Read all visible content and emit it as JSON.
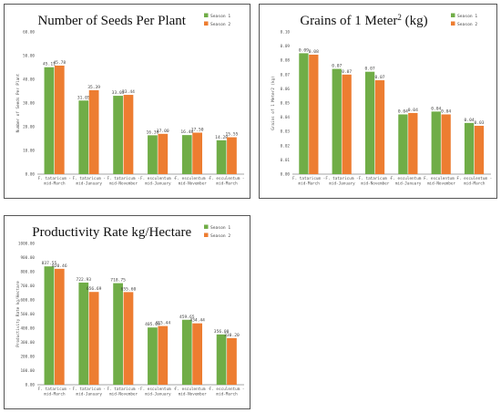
{
  "chart_data": [
    {
      "type": "bar",
      "title": "Number of Seeds Per Plant",
      "ylabel": "Number of Seeds Per Plant",
      "xlabel": "",
      "categories": [
        "F. tataricum - mid-March",
        "F. tataricum - mid-January",
        "F. tataricum - mid-November",
        "F. esculentum - mid-January",
        "F. esculentum - mid-November",
        "F. esculentum - mid-March"
      ],
      "category_lines": [
        [
          "F. tataricum -",
          "mid-March"
        ],
        [
          "F. tataricum -",
          "mid-January"
        ],
        [
          "F. tataricum -",
          "mid-November"
        ],
        [
          "F. esculentum -",
          "mid-January"
        ],
        [
          "F. esculentum -",
          "mid-November"
        ],
        [
          "F. esculentum -",
          "mid-March"
        ]
      ],
      "ylim": [
        0,
        60
      ],
      "yticks": [
        0,
        10,
        20,
        30,
        40,
        50,
        60
      ],
      "ytick_labels": [
        "0.00",
        "10.00",
        "20.00",
        "30.00",
        "40.00",
        "50.00",
        "60.00"
      ],
      "series": [
        {
          "name": "Season 1",
          "color": "#70ad47",
          "values": [
            45.11,
            31.05,
            33.05,
            16.39,
            16.48,
            14.28
          ],
          "labels": [
            "45.11",
            "31.05",
            "33.05",
            "16.39",
            "16.48",
            "14.28"
          ]
        },
        {
          "name": "Season 2",
          "color": "#ed7d31",
          "values": [
            45.78,
            35.39,
            33.44,
            17.0,
            17.5,
            15.55
          ],
          "labels": [
            "45.78",
            "35.39",
            "33.44",
            "17.00",
            "17.50",
            "15.55"
          ]
        }
      ],
      "legend_position": "top-right",
      "grid": false
    },
    {
      "type": "bar",
      "title": "Grains of 1 Meter",
      "title_sup": "2",
      "title_suffix": " (kg)",
      "ylabel": "Grains of 1 Meter2 (kg)",
      "xlabel": "",
      "categories": [
        "F. tataricum - mid-March",
        "F. tataricum - mid-January",
        "F. tataricum - mid-November",
        "F. esculentum - mid-January",
        "F. esculentum - mid-November",
        "F. esculentum - mid-March"
      ],
      "category_lines": [
        [
          "F. tataricum -",
          "mid-March"
        ],
        [
          "F. tataricum -",
          "mid-January"
        ],
        [
          "F. tataricum -",
          "mid-November"
        ],
        [
          "F. esculentum -",
          "mid-January"
        ],
        [
          "F. esculentum -",
          "mid-November"
        ],
        [
          "F. esculentum -",
          "mid-March"
        ]
      ],
      "ylim": [
        0,
        0.1
      ],
      "yticks": [
        0,
        0.01,
        0.02,
        0.03,
        0.04,
        0.05,
        0.06,
        0.07,
        0.08,
        0.09,
        0.1
      ],
      "ytick_labels": [
        "0.00",
        "0.01",
        "0.02",
        "0.03",
        "0.04",
        "0.05",
        "0.06",
        "0.07",
        "0.08",
        "0.09",
        "0.10"
      ],
      "series": [
        {
          "name": "Season 1",
          "color": "#70ad47",
          "values": [
            0.085,
            0.074,
            0.072,
            0.042,
            0.044,
            0.036
          ],
          "labels": [
            "0.09",
            "0.07",
            "0.07",
            "0.04",
            "0.04",
            "0.04"
          ]
        },
        {
          "name": "Season 2",
          "color": "#ed7d31",
          "values": [
            0.084,
            0.07,
            0.066,
            0.043,
            0.042,
            0.034
          ],
          "labels": [
            "0.08",
            "0.07",
            "0.07",
            "0.04",
            "0.04",
            "0.03"
          ]
        }
      ],
      "legend_position": "top-right",
      "grid": false
    },
    {
      "type": "bar",
      "title": "Productivity Rate kg/Hectare",
      "ylabel": "Productivity Rate kg/Hectare",
      "xlabel": "",
      "categories": [
        "F. tataricum - mid-March",
        "F. tataricum - mid-January",
        "F. tataricum - mid-November",
        "F. esculentum - mid-January",
        "F. esculentum - mid-November",
        "F. esculentum - mid-March"
      ],
      "category_lines": [
        [
          "F. tataricum -",
          "mid-March"
        ],
        [
          "F. tataricum -",
          "mid-January"
        ],
        [
          "F. tataricum -",
          "mid-November"
        ],
        [
          "F. esculentum -",
          "mid-January"
        ],
        [
          "F. esculentum -",
          "mid-November"
        ],
        [
          "F. esculentum -",
          "mid-March"
        ]
      ],
      "ylim": [
        0,
        1000
      ],
      "yticks": [
        0,
        100,
        200,
        300,
        400,
        500,
        600,
        700,
        800,
        900,
        1000
      ],
      "ytick_labels": [
        "0.00",
        "100.00",
        "200.00",
        "300.00",
        "400.00",
        "500.00",
        "600.00",
        "700.00",
        "800.00",
        "900.00",
        "1000.00"
      ],
      "series": [
        {
          "name": "Season 1",
          "color": "#70ad47",
          "values": [
            837.55,
            722.93,
            718.75,
            405.09,
            459.65,
            356.0
          ],
          "labels": [
            "837.55",
            "722.93",
            "718.75",
            "405.09",
            "459.65",
            "356.00"
          ]
        },
        {
          "name": "Season 2",
          "color": "#ed7d31",
          "values": [
            820.46,
            656.69,
            655.6,
            415.44,
            434.44,
            330.2
          ],
          "labels": [
            "820.46",
            "656.69",
            "655.60",
            "415.44",
            "434.44",
            "330.20"
          ]
        }
      ],
      "legend_position": "top-right",
      "grid": false
    }
  ]
}
